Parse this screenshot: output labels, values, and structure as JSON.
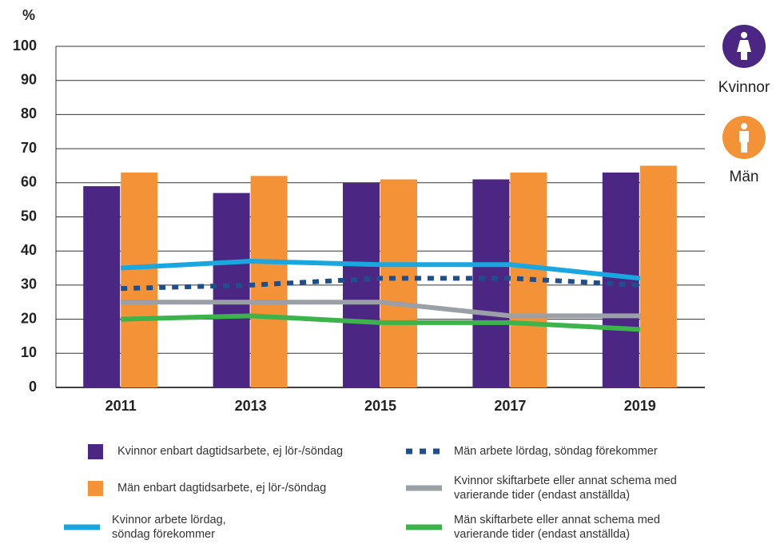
{
  "chart_data": {
    "type": "bar",
    "y_label": "%",
    "categories": [
      "2011",
      "2013",
      "2015",
      "2017",
      "2019"
    ],
    "series": [
      {
        "name": "Kvinnor enbart dagtidsarbete, ej lör-/söndag",
        "kind": "bar",
        "color": "#4b2683",
        "values": [
          59,
          57,
          60,
          61,
          63
        ]
      },
      {
        "name": "Män enbart dagtidsarbete, ej lör-/söndag",
        "kind": "bar",
        "color": "#f39237",
        "values": [
          63,
          62,
          61,
          63,
          65
        ]
      },
      {
        "name": "Kvinnor arbete lördag, söndag förekommer",
        "kind": "line",
        "color": "#1aa7e0",
        "values": [
          35,
          37,
          36,
          36,
          32
        ]
      },
      {
        "name": "Män arbete lördag, söndag förekommer",
        "kind": "line",
        "dashed": true,
        "color": "#1f4e8c",
        "values": [
          29,
          30,
          32,
          32,
          30
        ]
      },
      {
        "name": "Kvinnor skiftarbete eller annat schema med varierande tider (endast anställda)",
        "kind": "line",
        "color": "#9aa0a6",
        "values": [
          25,
          25,
          25,
          21,
          21
        ]
      },
      {
        "name": "Män skiftarbete eller annat schema med varierande tider (endast anställda)",
        "kind": "line",
        "color": "#3cb44b",
        "values": [
          20,
          21,
          19,
          19,
          17
        ]
      }
    ],
    "ylim": [
      0,
      100
    ],
    "yticks": [
      0,
      10,
      20,
      30,
      40,
      50,
      60,
      70,
      80,
      90,
      100
    ],
    "grid": true,
    "side_labels": [
      "Kvinnor",
      "Män"
    ]
  }
}
